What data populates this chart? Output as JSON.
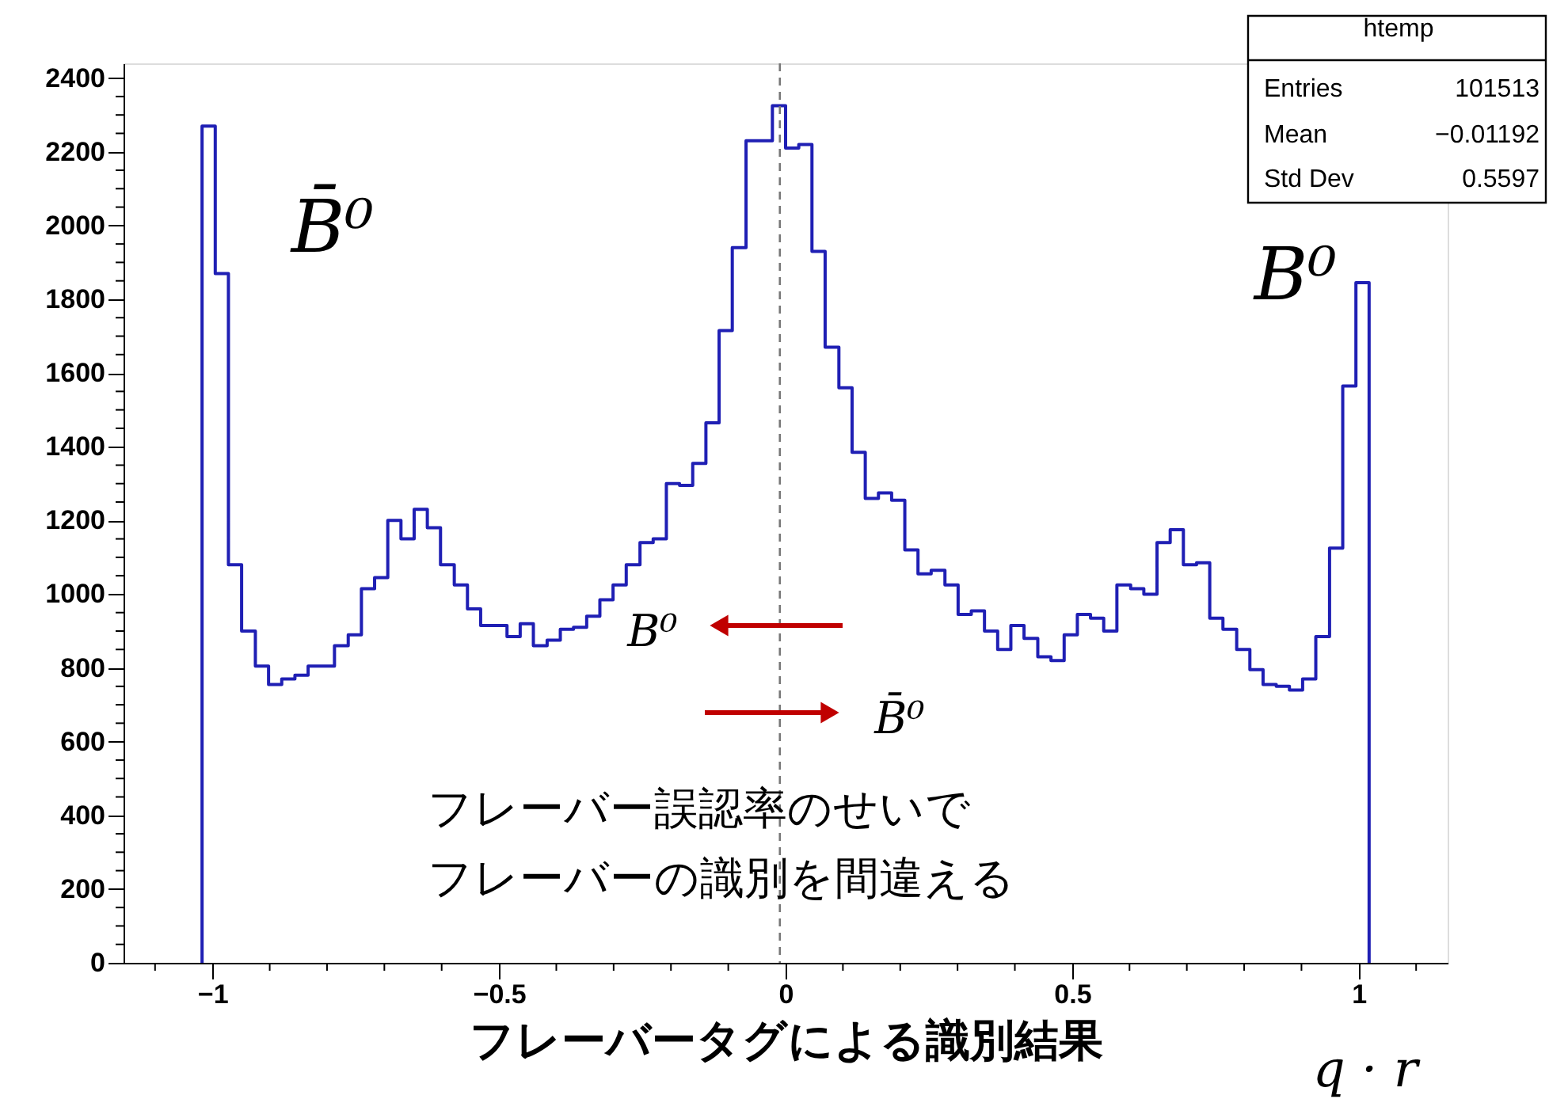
{
  "chart_data": {
    "type": "histogram",
    "bins": [
      -1.018,
      -0.995,
      -0.972,
      -0.949,
      -0.925,
      -0.902,
      -0.879,
      -0.856,
      -0.833,
      -0.81,
      -0.787,
      -0.763,
      -0.74,
      -0.717,
      -0.694,
      -0.671,
      -0.648,
      -0.625,
      -0.602,
      -0.578,
      -0.555,
      -0.532,
      -0.509,
      -0.486,
      -0.463,
      -0.44,
      -0.416,
      -0.393,
      -0.37,
      -0.347,
      -0.324,
      -0.301,
      -0.278,
      -0.254,
      -0.231,
      -0.208,
      -0.185,
      -0.162,
      -0.139,
      -0.116,
      -0.093,
      -0.069,
      -0.046,
      -0.023,
      0.0,
      0.023,
      0.046,
      0.069,
      0.093,
      0.116,
      0.139,
      0.162,
      0.185,
      0.208,
      0.231,
      0.254,
      0.278,
      0.301,
      0.324,
      0.347,
      0.37,
      0.393,
      0.416,
      0.44,
      0.463,
      0.486,
      0.509,
      0.532,
      0.555,
      0.578,
      0.602,
      0.625,
      0.648,
      0.671,
      0.694,
      0.717,
      0.74,
      0.763,
      0.787,
      0.81,
      0.833,
      0.856,
      0.879,
      0.902,
      0.925,
      0.949,
      0.972,
      0.995,
      1.018
    ],
    "values": [
      2270,
      1870,
      1080,
      900,
      805,
      755,
      770,
      780,
      805,
      805,
      860,
      890,
      1015,
      1045,
      1200,
      1150,
      1230,
      1180,
      1080,
      1025,
      960,
      915,
      915,
      885,
      920,
      860,
      875,
      905,
      910,
      940,
      985,
      1025,
      1080,
      1140,
      1150,
      1300,
      1295,
      1355,
      1465,
      1715,
      1940,
      2230,
      2230,
      2325,
      2210,
      2220,
      1930,
      1670,
      1560,
      1385,
      1260,
      1275,
      1255,
      1120,
      1055,
      1065,
      1025,
      945,
      955,
      900,
      850,
      915,
      880,
      830,
      820,
      890,
      945,
      935,
      900,
      1025,
      1015,
      1000,
      1140,
      1175,
      1080,
      1085,
      935,
      905,
      850,
      795,
      755,
      750,
      740,
      770,
      885,
      1125,
      1565,
      1845
    ],
    "color": "#1f1fb4",
    "xlim": [
      -1.155,
      1.155
    ],
    "ylim": [
      0,
      2440
    ],
    "xticks": [
      {
        "value": -1.1,
        "label": null
      },
      -1,
      {
        "value": -0.9,
        "label": null
      },
      {
        "value": -0.8,
        "label": null
      },
      {
        "value": -0.7,
        "label": null
      },
      {
        "value": -0.6,
        "label": null
      },
      -0.5,
      {
        "value": -0.4,
        "label": null
      },
      {
        "value": -0.3,
        "label": null
      },
      {
        "value": -0.2,
        "label": null
      },
      {
        "value": -0.1,
        "label": null
      },
      0,
      {
        "value": 0.1,
        "label": null
      },
      {
        "value": 0.2,
        "label": null
      },
      {
        "value": 0.3,
        "label": null
      },
      {
        "value": 0.4,
        "label": null
      },
      0.5,
      {
        "value": 0.6,
        "label": null
      },
      {
        "value": 0.7,
        "label": null
      },
      {
        "value": 0.8,
        "label": null
      },
      {
        "value": 0.9,
        "label": null
      },
      1,
      {
        "value": 1.1,
        "label": null
      }
    ],
    "yticks": [
      0,
      {
        "value": 50,
        "label": null
      },
      {
        "value": 100,
        "label": null
      },
      {
        "value": 150,
        "label": null
      },
      200,
      {
        "value": 250,
        "label": null
      },
      {
        "value": 300,
        "label": null
      },
      {
        "value": 350,
        "label": null
      },
      400,
      {
        "value": 450,
        "label": null
      },
      {
        "value": 500,
        "label": null
      },
      {
        "value": 550,
        "label": null
      },
      600,
      {
        "value": 650,
        "label": null
      },
      {
        "value": 700,
        "label": null
      },
      {
        "value": 750,
        "label": null
      },
      800,
      {
        "value": 850,
        "label": null
      },
      {
        "value": 900,
        "label": null
      },
      {
        "value": 950,
        "label": null
      },
      1000,
      {
        "value": 1050,
        "label": null
      },
      {
        "value": 1100,
        "label": null
      },
      {
        "value": 1150,
        "label": null
      },
      1200,
      {
        "value": 1250,
        "label": null
      },
      {
        "value": 1300,
        "label": null
      },
      {
        "value": 1350,
        "label": null
      },
      1400,
      {
        "value": 1450,
        "label": null
      },
      {
        "value": 1500,
        "label": null
      },
      {
        "value": 1550,
        "label": null
      },
      1600,
      {
        "value": 1650,
        "label": null
      },
      {
        "value": 1700,
        "label": null
      },
      {
        "value": 1750,
        "label": null
      },
      1800,
      {
        "value": 1850,
        "label": null
      },
      {
        "value": 1900,
        "label": null
      },
      {
        "value": 1950,
        "label": null
      },
      2000,
      {
        "value": 2050,
        "label": null
      },
      {
        "value": 2100,
        "label": null
      },
      {
        "value": 2150,
        "label": null
      },
      2200,
      {
        "value": 2250,
        "label": null
      },
      {
        "value": 2300,
        "label": null
      },
      {
        "value": 2350,
        "label": null
      },
      2400
    ],
    "grid": false,
    "xlabel": "フレーバータグによる識別結果",
    "ref_lines": [
      {
        "axis": "x",
        "value": -0.01,
        "color": "#777777",
        "line_style": "dashed"
      }
    ],
    "annotations": [
      "B̄⁰",
      "B⁰",
      "B⁰",
      "B̄⁰",
      "フレーバー誤認率のせいで",
      "フレーバーの識別を間違える",
      "q · r",
      "htemp",
      "Entries",
      "101513",
      "Mean",
      "−0.01192",
      "Std Dev",
      "0.5597"
    ]
  }
}
